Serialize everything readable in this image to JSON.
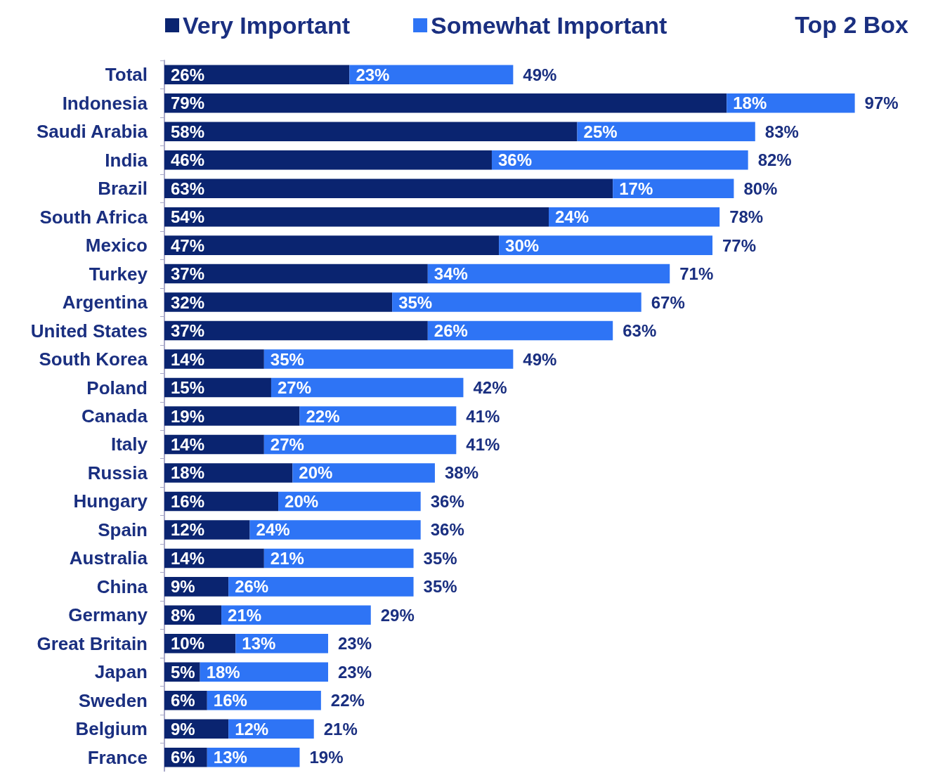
{
  "chart_data": {
    "type": "bar",
    "orientation": "horizontal",
    "stacked": true,
    "legend": "top",
    "tick_labels": "y",
    "annotations": [
      "Top 2 Box"
    ],
    "categories": [
      "Total",
      "Indonesia",
      "Saudi Arabia",
      "India",
      "Brazil",
      "South Africa",
      "Mexico",
      "Turkey",
      "Argentina",
      "United States",
      "South Korea",
      "Poland",
      "Canada",
      "Italy",
      "Russia",
      "Hungary",
      "Spain",
      "Australia",
      "China",
      "Germany",
      "Great Britain",
      "Japan",
      "Sweden",
      "Belgium",
      "France"
    ],
    "series": [
      {
        "name": "Very Important",
        "color": "#0a2470",
        "values": [
          26,
          79,
          58,
          46,
          63,
          54,
          47,
          37,
          32,
          37,
          14,
          15,
          19,
          14,
          18,
          16,
          12,
          14,
          9,
          8,
          10,
          5,
          6,
          9,
          6
        ],
        "value_labels": [
          "26%",
          "79%",
          "58%",
          "46%",
          "63%",
          "54%",
          "47%",
          "37%",
          "32%",
          "37%",
          "14%",
          "15%",
          "19%",
          "14%",
          "18%",
          "16%",
          "12%",
          "14%",
          "9%",
          "8%",
          "10%",
          "5%",
          "6%",
          "9%",
          "6%"
        ]
      },
      {
        "name": "Somewhat Important",
        "color": "#2e74f5",
        "values": [
          23,
          18,
          25,
          36,
          17,
          24,
          30,
          34,
          35,
          26,
          35,
          27,
          22,
          27,
          20,
          20,
          24,
          21,
          26,
          21,
          13,
          18,
          16,
          12,
          13
        ],
        "value_labels": [
          "23%",
          "18%",
          "25%",
          "36%",
          "17%",
          "24%",
          "30%",
          "34%",
          "35%",
          "26%",
          "35%",
          "27%",
          "22%",
          "27%",
          "20%",
          "20%",
          "24%",
          "21%",
          "26%",
          "21%",
          "13%",
          "18%",
          "16%",
          "12%",
          "13%"
        ]
      }
    ],
    "totals": [
      "49%",
      "97%",
      "83%",
      "82%",
      "80%",
      "78%",
      "77%",
      "71%",
      "67%",
      "63%",
      "49%",
      "42%",
      "41%",
      "41%",
      "38%",
      "36%",
      "36%",
      "35%",
      "35%",
      "29%",
      "23%",
      "23%",
      "22%",
      "21%",
      "19%"
    ]
  }
}
